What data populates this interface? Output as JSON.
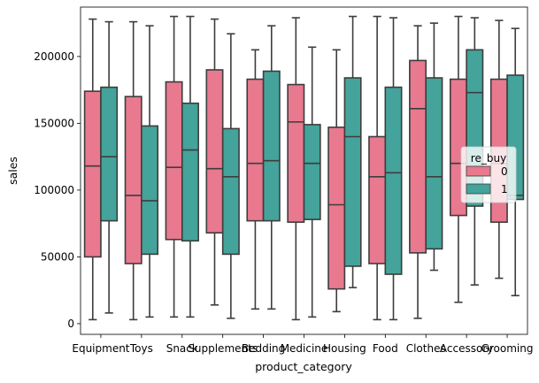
{
  "chart_data": {
    "type": "boxplot",
    "title": "",
    "xlabel": "product_category",
    "ylabel": "sales",
    "ylim": [
      -8000,
      237000
    ],
    "yticks": [
      0,
      50000,
      100000,
      150000,
      200000
    ],
    "ytick_labels": [
      "0",
      "50000",
      "100000",
      "150000",
      "200000"
    ],
    "grid": false,
    "legend": {
      "title": "re_buy",
      "placement": "center-right"
    },
    "categories": [
      "Equipment",
      "Toys",
      "Snack",
      "Supplements",
      "Bedding",
      "Medicine",
      "Housing",
      "Food",
      "Clothes",
      "Accessory",
      "Grooming"
    ],
    "series": [
      {
        "name": "0",
        "color": "#e8798e",
        "boxes": [
          {
            "whisker_low": 3000,
            "q1": 50000,
            "median": 118000,
            "q3": 174000,
            "whisker_high": 228000
          },
          {
            "whisker_low": 3000,
            "q1": 45000,
            "median": 96000,
            "q3": 170000,
            "whisker_high": 226000
          },
          {
            "whisker_low": 5000,
            "q1": 63000,
            "median": 117000,
            "q3": 181000,
            "whisker_high": 230000
          },
          {
            "whisker_low": 14000,
            "q1": 68000,
            "median": 116000,
            "q3": 190000,
            "whisker_high": 228000
          },
          {
            "whisker_low": 11000,
            "q1": 77000,
            "median": 120000,
            "q3": 183000,
            "whisker_high": 205000
          },
          {
            "whisker_low": 3000,
            "q1": 76000,
            "median": 151000,
            "q3": 179000,
            "whisker_high": 229000
          },
          {
            "whisker_low": 9000,
            "q1": 26000,
            "median": 89000,
            "q3": 147000,
            "whisker_high": 205000
          },
          {
            "whisker_low": 3000,
            "q1": 45000,
            "median": 110000,
            "q3": 140000,
            "whisker_high": 230000
          },
          {
            "whisker_low": 4000,
            "q1": 53000,
            "median": 161000,
            "q3": 197000,
            "whisker_high": 223000
          },
          {
            "whisker_low": 16000,
            "q1": 81000,
            "median": 120000,
            "q3": 183000,
            "whisker_high": 230000
          },
          {
            "whisker_low": 34000,
            "q1": 76000,
            "median": 120000,
            "q3": 183000,
            "whisker_high": 227000
          }
        ]
      },
      {
        "name": "1",
        "color": "#44a39a",
        "boxes": [
          {
            "whisker_low": 8000,
            "q1": 77000,
            "median": 125000,
            "q3": 177000,
            "whisker_high": 226000
          },
          {
            "whisker_low": 5000,
            "q1": 52000,
            "median": 92000,
            "q3": 148000,
            "whisker_high": 223000
          },
          {
            "whisker_low": 5000,
            "q1": 62000,
            "median": 130000,
            "q3": 165000,
            "whisker_high": 230000
          },
          {
            "whisker_low": 4000,
            "q1": 52000,
            "median": 110000,
            "q3": 146000,
            "whisker_high": 217000
          },
          {
            "whisker_low": 11000,
            "q1": 77000,
            "median": 122000,
            "q3": 189000,
            "whisker_high": 223000
          },
          {
            "whisker_low": 5000,
            "q1": 78000,
            "median": 120000,
            "q3": 149000,
            "whisker_high": 207000
          },
          {
            "whisker_low": 27000,
            "q1": 43000,
            "median": 140000,
            "q3": 184000,
            "whisker_high": 230000
          },
          {
            "whisker_low": 3000,
            "q1": 37000,
            "median": 113000,
            "q3": 177000,
            "whisker_high": 229000
          },
          {
            "whisker_low": 40000,
            "q1": 56000,
            "median": 110000,
            "q3": 184000,
            "whisker_high": 225000
          },
          {
            "whisker_low": 29000,
            "q1": 88000,
            "median": 173000,
            "q3": 205000,
            "whisker_high": 229000
          },
          {
            "whisker_low": 21000,
            "q1": 93000,
            "median": 96000,
            "q3": 186000,
            "whisker_high": 221000
          }
        ]
      }
    ]
  }
}
